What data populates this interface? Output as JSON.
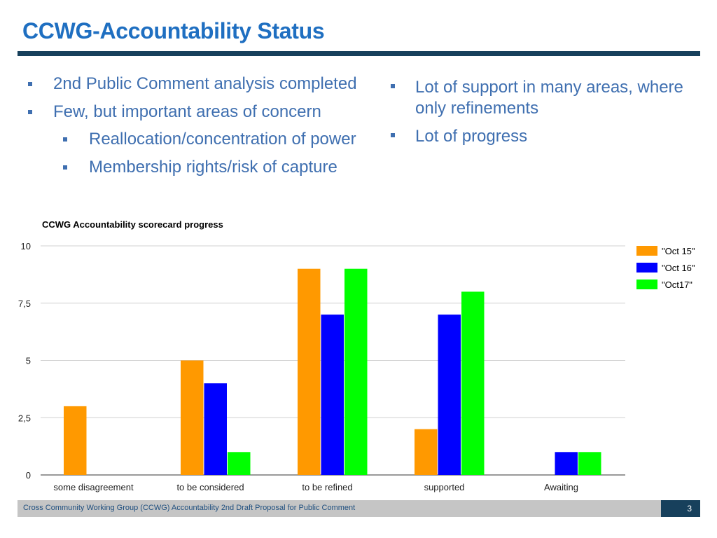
{
  "slide": {
    "title": "CCWG-Accountability Status",
    "left_bullets": [
      {
        "text": "2nd Public Comment analysis completed",
        "level": 1
      },
      {
        "text": "Few, but important areas of concern",
        "level": 1
      },
      {
        "text": "Reallocation/concentration of power",
        "level": 2
      },
      {
        "text": "Membership rights/risk of capture",
        "level": 2
      }
    ],
    "right_bullets": [
      {
        "text": "Lot of support in many areas, where only refinements"
      },
      {
        "text": "Lot of progress"
      }
    ]
  },
  "chart_data": {
    "type": "bar",
    "title": "CCWG Accountability scorecard progress",
    "categories": [
      "some disagreement",
      "to be considered",
      "to be refined",
      "supported",
      "Awaiting"
    ],
    "series": [
      {
        "name": "\"Oct 15\"",
        "color": "#ff9900",
        "values": [
          3,
          5,
          9,
          2,
          0
        ]
      },
      {
        "name": "\"Oct 16\"",
        "color": "#0000ff",
        "values": [
          0,
          4,
          7,
          7,
          1
        ]
      },
      {
        "name": "\"Oct17\"",
        "color": "#00ff00",
        "values": [
          0,
          1,
          9,
          8,
          1
        ]
      }
    ],
    "ylim": [
      0,
      10
    ],
    "yticks": [
      {
        "value": 0,
        "label": "0"
      },
      {
        "value": 2.5,
        "label": "2,5"
      },
      {
        "value": 5,
        "label": "5"
      },
      {
        "value": 7.5,
        "label": "7,5"
      },
      {
        "value": 10,
        "label": "10"
      }
    ],
    "xlabel": "",
    "ylabel": "",
    "grid": true,
    "legend_position": "top-right"
  },
  "footer": {
    "text": "Cross Community Working Group (CCWG) Accountability 2nd Draft Proposal for Public Comment",
    "page_number": "3"
  }
}
